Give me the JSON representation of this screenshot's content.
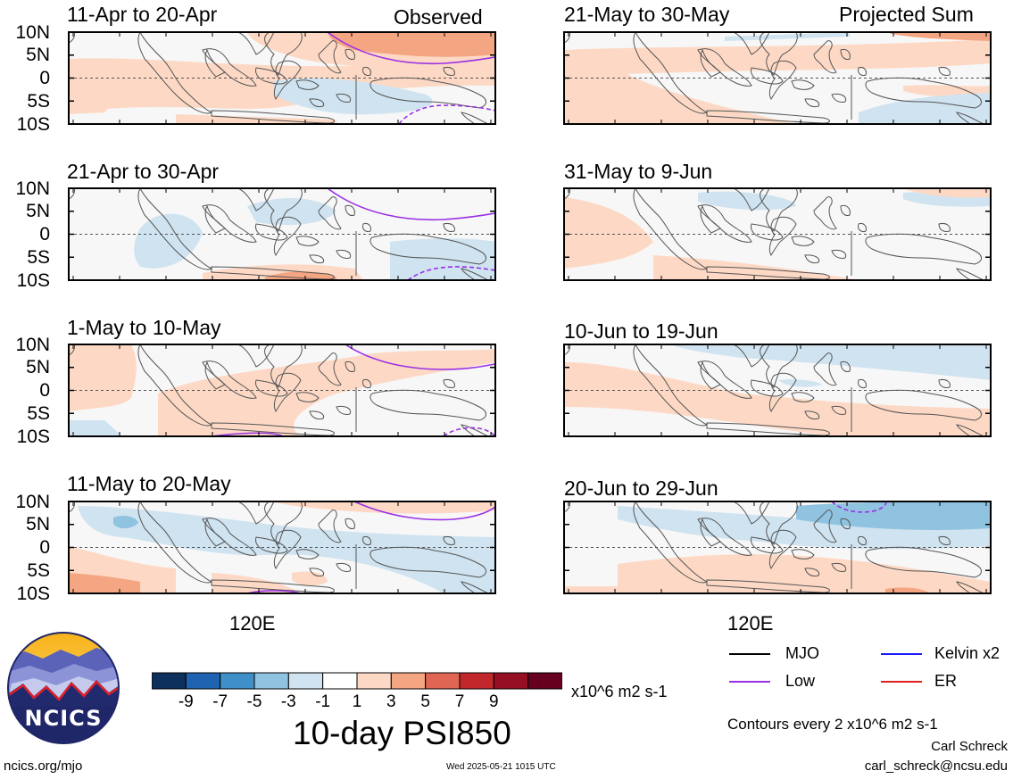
{
  "colors": {
    "mjo": "#000000",
    "low": "#9b30e6",
    "kelvin": "#1a1aff",
    "er": "#e02020",
    "plot_background": "#f7f7f7"
  },
  "column_headers": {
    "left": "Observed",
    "right": "Projected Sum"
  },
  "panels": [
    {
      "title": "11-Apr to 20-Apr"
    },
    {
      "title": "21-May to 30-May"
    },
    {
      "title": "21-Apr to 30-Apr"
    },
    {
      "title": "31-May to 9-Jun"
    },
    {
      "title": "1-May to 10-May"
    },
    {
      "title": "10-Jun to 19-Jun"
    },
    {
      "title": "11-May to 20-May"
    },
    {
      "title": "20-Jun to 29-Jun"
    }
  ],
  "lat_ticks": [
    "10N",
    "5N",
    "0",
    "5S",
    "10S"
  ],
  "lon_tick": "120E",
  "line_legend": [
    {
      "label": "MJO",
      "color": "#000000"
    },
    {
      "label": "Low",
      "color": "#9b30e6"
    },
    {
      "label": "Kelvin x2",
      "color": "#1a1aff"
    },
    {
      "label": "ER",
      "color": "#e02020"
    }
  ],
  "colorbar": {
    "colors": [
      "#0d2f5c",
      "#1f63b0",
      "#3f8fc8",
      "#8fc3e0",
      "#cfe3f0",
      "#ffffff",
      "#fdd9c5",
      "#f4a582",
      "#e06552",
      "#c2282b",
      "#960e22",
      "#67001f"
    ],
    "labels": [
      "-9",
      "-7",
      "-5",
      "-3",
      "-1",
      "1",
      "3",
      "5",
      "7",
      "9"
    ],
    "units": "x10^6 m2 s-1"
  },
  "main_title": "10-day PSI850",
  "contour_note": "Contours every 2 x10^6 m2 s-1",
  "author": "Carl Schreck",
  "email": "carl_schreck@ncsu.edu",
  "url": "ncics.org/mjo",
  "timestamp": "Wed 2025-05-21 1015 UTC",
  "logo": {
    "text": "NCICS"
  }
}
